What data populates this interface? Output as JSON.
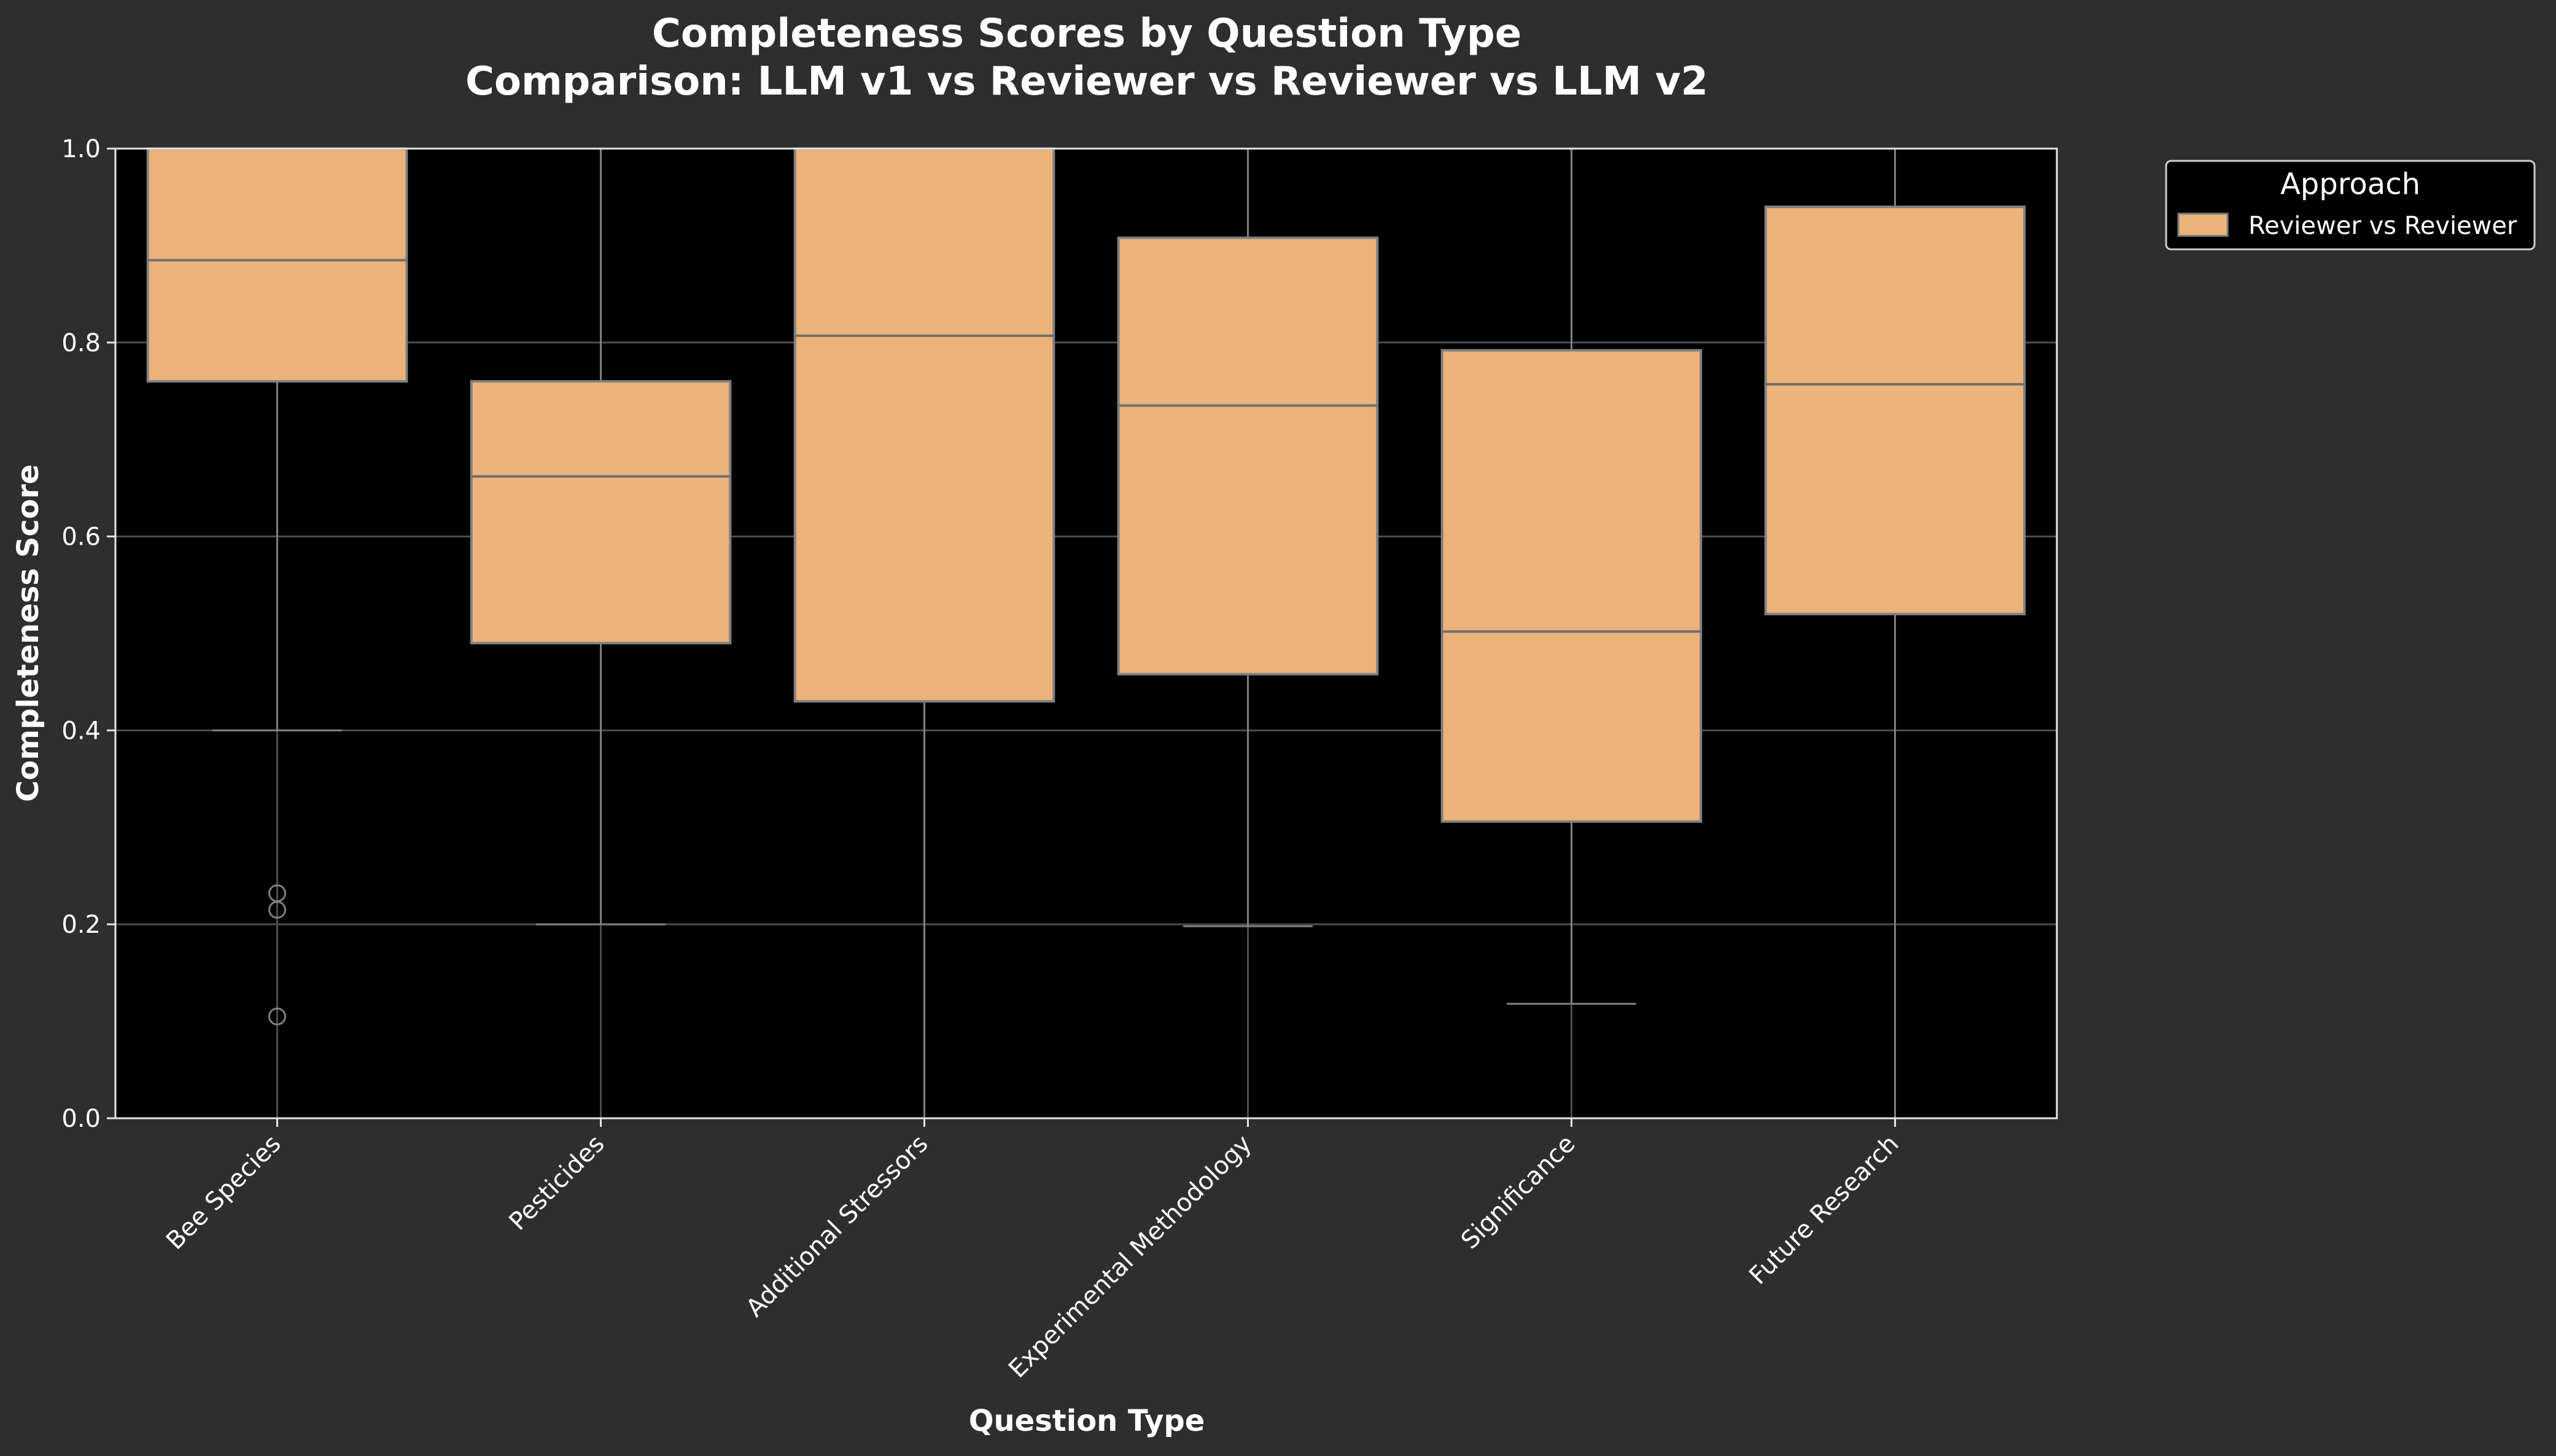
{
  "chart_data": {
    "type": "box",
    "title": "Completeness Scores by Question Type",
    "subtitle": "Comparison: LLM v1 vs Reviewer vs Reviewer vs LLM v2",
    "xlabel": "Question Type",
    "ylabel": "Completeness Score",
    "ylim": [
      0,
      1
    ],
    "yticks": [
      "0.0",
      "0.2",
      "0.4",
      "0.6",
      "0.8",
      "1.0"
    ],
    "grid": true,
    "legend": {
      "title": "Approach",
      "placement": "outside-top-right",
      "entries": [
        "Reviewer vs Reviewer"
      ]
    },
    "categories": [
      "Bee Species",
      "Pesticides",
      "Additional Stressors",
      "Experimental Methodology",
      "Significance",
      "Future Research"
    ],
    "series": [
      {
        "name": "Reviewer vs Reviewer",
        "color": "#ebb27a",
        "boxes": [
          {
            "whisker_low": 0.4,
            "q1": 0.76,
            "median": 0.885,
            "q3": 1.0,
            "whisker_high": 1.0,
            "outliers": [
              0.232,
              0.215,
              0.105
            ]
          },
          {
            "whisker_low": 0.2,
            "q1": 0.49,
            "median": 0.662,
            "q3": 0.76,
            "whisker_high": 1.0,
            "outliers": []
          },
          {
            "whisker_low": 0.0,
            "q1": 0.43,
            "median": 0.807,
            "q3": 1.0,
            "whisker_high": 1.0,
            "outliers": []
          },
          {
            "whisker_low": 0.198,
            "q1": 0.458,
            "median": 0.735,
            "q3": 0.908,
            "whisker_high": 1.0,
            "outliers": []
          },
          {
            "whisker_low": 0.118,
            "q1": 0.306,
            "median": 0.502,
            "q3": 0.792,
            "whisker_high": 1.0,
            "outliers": []
          },
          {
            "whisker_low": 0.0,
            "q1": 0.52,
            "median": 0.757,
            "q3": 0.94,
            "whisker_high": 1.0,
            "outliers": []
          }
        ]
      }
    ]
  }
}
